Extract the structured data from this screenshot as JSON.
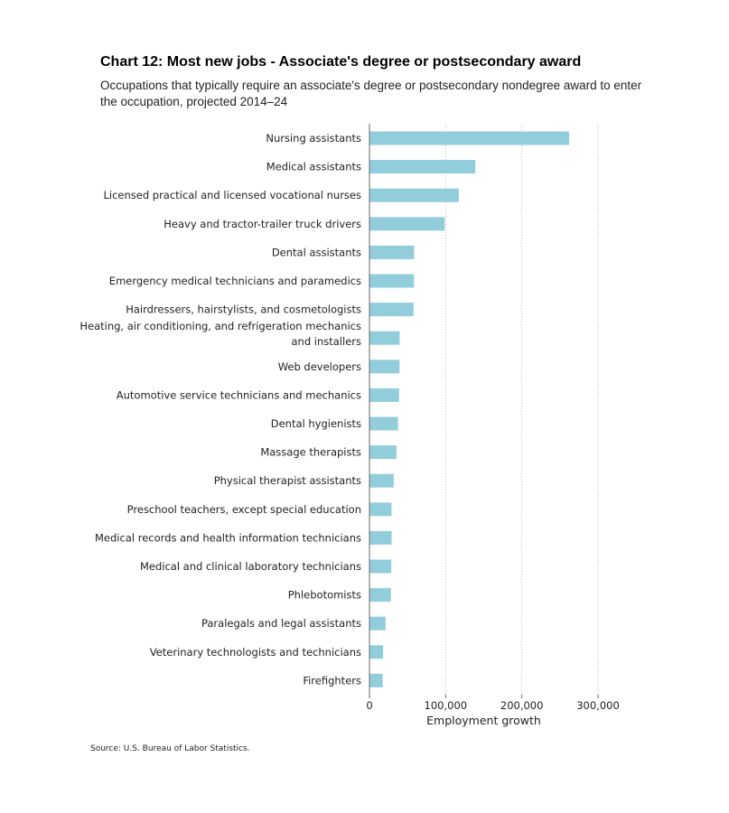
{
  "chart_data": {
    "type": "bar",
    "orientation": "horizontal",
    "title": "Chart 12: Most new jobs - Associate's degree or postsecondary award",
    "subtitle": "Occupations that typically require an associate's degree or postsecondary nondegree award to enter the occupation, projected 2014–24",
    "xlabel": "Employment growth",
    "ylabel": "",
    "xlim": [
      0,
      300000
    ],
    "ticks": [
      {
        "value": 0,
        "label": "0"
      },
      {
        "value": 100000,
        "label": "100,000"
      },
      {
        "value": 200000,
        "label": "200,000"
      },
      {
        "value": 300000,
        "label": "300,000"
      }
    ],
    "grid": true,
    "bar_color": "#92CDDC",
    "categories": [
      [
        "Nursing assistants"
      ],
      [
        "Medical assistants"
      ],
      [
        "Licensed practical and licensed vocational nurses"
      ],
      [
        "Heavy and tractor-trailer truck drivers"
      ],
      [
        "Dental assistants"
      ],
      [
        "Emergency medical technicians and paramedics"
      ],
      [
        "Hairdressers, hairstylists, and cosmetologists"
      ],
      [
        "Heating, air conditioning, and refrigeration mechanics",
        "and installers"
      ],
      [
        "Web developers"
      ],
      [
        "Automotive service technicians and mechanics"
      ],
      [
        "Dental hygienists"
      ],
      [
        "Massage therapists"
      ],
      [
        "Physical therapist assistants"
      ],
      [
        "Preschool teachers, except special education"
      ],
      [
        "Medical records and health information technicians"
      ],
      [
        "Medical and clinical laboratory technicians"
      ],
      [
        "Phlebotomists"
      ],
      [
        "Paralegals and legal assistants"
      ],
      [
        "Veterinary technologists and technicians"
      ],
      [
        "Firefighters"
      ]
    ],
    "values": [
      262100,
      138900,
      117300,
      98800,
      58600,
      58500,
      57900,
      39600,
      39500,
      38800,
      37500,
      35500,
      31900,
      28900,
      29000,
      28600,
      28200,
      21200,
      17900,
      17400
    ]
  },
  "source": "Source: U.S. Bureau of Labor Statistics."
}
